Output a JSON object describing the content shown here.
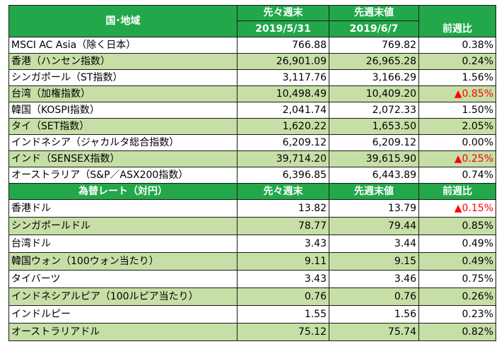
{
  "header": {
    "region": "国･地域",
    "prev_week_line1": "先々週末",
    "prev_week_line2": "2019/5/31",
    "last_week_line1": "先週末値",
    "last_week_line2": "2019/6/7",
    "change": "前週比"
  },
  "indices": [
    {
      "name": "MSCI AC Asia（除く日本）",
      "prev": "766.88",
      "last": "769.82",
      "change": "0.38%"
    },
    {
      "name": "香港（ハンセン指数）",
      "prev": "26,901.09",
      "last": "26,965.28",
      "change": "0.24%"
    },
    {
      "name": "シンガポール（ST指数）",
      "prev": "3,117.76",
      "last": "3,166.29",
      "change": "1.56%"
    },
    {
      "name": "台湾（加権指数）",
      "prev": "10,498.49",
      "last": "10,409.20",
      "change": "▲0.85%"
    },
    {
      "name": "韓国（KOSPI指数）",
      "prev": "2,041.74",
      "last": "2,072.33",
      "change": "1.50%"
    },
    {
      "name": "タイ（SET指数）",
      "prev": "1,620.22",
      "last": "1,653.50",
      "change": "2.05%"
    },
    {
      "name": "インドネシア（ジャカルタ総合指数）",
      "prev": "6,209.12",
      "last": "6,209.12",
      "change": "0.00%"
    },
    {
      "name": "インド（SENSEX指数）",
      "prev": "39,714.20",
      "last": "39,615.90",
      "change": "▲0.25%"
    },
    {
      "name": "オーストラリア（S&P／ASX200指数）",
      "prev": "6,396.85",
      "last": "6,443.89",
      "change": "0.74%"
    }
  ],
  "fx_header": {
    "label": "為替レート（対円）",
    "prev": "先々週末",
    "last": "先週末値",
    "change": "前週比"
  },
  "fx": [
    {
      "name": "香港ドル",
      "prev": "13.82",
      "last": "13.79",
      "change": "▲0.15%"
    },
    {
      "name": "シンガポールドル",
      "prev": "78.77",
      "last": "79.44",
      "change": "0.85%"
    },
    {
      "name": "台湾ドル",
      "prev": "3.43",
      "last": "3.44",
      "change": "0.49%"
    },
    {
      "name": "韓国ウォン（100ウォン当たり）",
      "prev": "9.11",
      "last": "9.15",
      "change": "0.49%"
    },
    {
      "name": "タイバーツ",
      "prev": "3.43",
      "last": "3.46",
      "change": "0.75%"
    },
    {
      "name": "インドネシアルピア（100ルピア当たり）",
      "prev": "0.76",
      "last": "0.76",
      "change": "0.26%"
    },
    {
      "name": "インドルピー",
      "prev": "1.55",
      "last": "1.56",
      "change": "0.23%"
    },
    {
      "name": "オーストラリアドル",
      "prev": "75.12",
      "last": "75.74",
      "change": "0.82%"
    }
  ],
  "colors": {
    "header_green": "#22a84a",
    "row_green": "#c6dfa6",
    "negative_red": "#ff0000"
  }
}
